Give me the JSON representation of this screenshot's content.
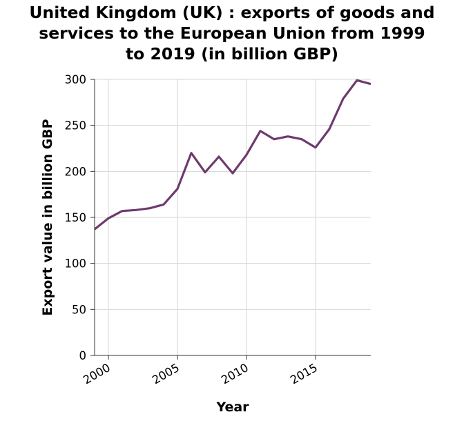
{
  "chart_data": {
    "type": "line",
    "title": [
      "United Kingdom (UK) : exports of goods and",
      "services to the European Union from 1999",
      "to 2019 (in billion GBP)"
    ],
    "xlabel": "Year",
    "ylabel": "Export value in billion GBP",
    "xlim": [
      1999,
      2019
    ],
    "ylim": [
      0,
      300
    ],
    "xticks": [
      2000,
      2005,
      2010,
      2015
    ],
    "yticks": [
      0,
      50,
      100,
      150,
      200,
      250,
      300
    ],
    "x_tick_labels": [
      "2000",
      "2005",
      "2010",
      "2015"
    ],
    "y_tick_labels": [
      "0",
      "50",
      "100",
      "150",
      "200",
      "250",
      "300"
    ],
    "grid": true,
    "line_color": "#6e3a6e",
    "series": [
      {
        "x": [
          1999,
          2000,
          2001,
          2002,
          2003,
          2004,
          2005,
          2006,
          2007,
          2008,
          2009,
          2010,
          2011,
          2012,
          2013,
          2014,
          2015,
          2016,
          2017,
          2018,
          2019
        ],
        "values": [
          137,
          149,
          157,
          158,
          160,
          164,
          181,
          220,
          199,
          216,
          198,
          218,
          244,
          235,
          238,
          235,
          226,
          246,
          279,
          299,
          295
        ]
      }
    ]
  }
}
